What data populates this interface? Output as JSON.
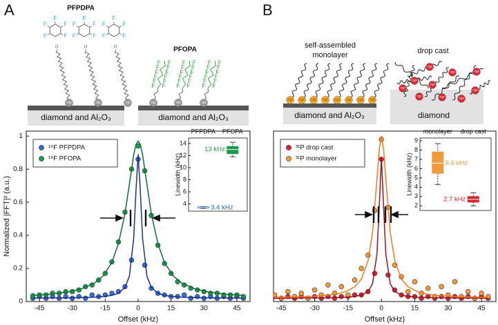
{
  "panels": {
    "a": "A",
    "b": "B"
  },
  "diagram": {
    "a": {
      "molecule_1": "PFPDPA",
      "molecule_2": "PFOPA",
      "substrate": "diamond and Al₂O₃",
      "atom_f": "F",
      "atom_o": "O",
      "atom_p": "³¹P"
    },
    "b": {
      "left_1": "self-assembled",
      "left_2": "monolayer",
      "right": "drop cast",
      "substrate_left": "diamond and Al₂O₃",
      "substrate_right": "diamond",
      "atom_p": "³¹P"
    }
  },
  "chart_data": [
    {
      "type": "scatter",
      "xlabel": "Offset (kHz)",
      "ylabel": "Normalized |FFT|² (a.u.)",
      "xlim": [
        -51,
        51
      ],
      "ylim": [
        0,
        1.03
      ],
      "xticks": [
        -45,
        -30,
        -15,
        0,
        15,
        30,
        45
      ],
      "yticks": [
        0,
        0.2,
        0.4,
        0.6,
        0.8,
        1
      ],
      "legend": "upper left",
      "x": [
        -48,
        -45,
        -42,
        -39,
        -36,
        -33,
        -30,
        -27,
        -24,
        -21,
        -18,
        -15,
        -12,
        -9,
        -6,
        -3,
        0,
        3,
        6,
        9,
        12,
        15,
        18,
        21,
        24,
        27,
        30,
        33,
        36,
        39,
        42,
        45,
        48
      ],
      "series": [
        {
          "name": "¹⁹F PFPDPA",
          "color": "#2f6fd6",
          "values": [
            0.02,
            0.03,
            0.02,
            0.03,
            0.02,
            0.03,
            0.02,
            0.03,
            0.02,
            0.04,
            0.03,
            0.04,
            0.05,
            0.06,
            0.09,
            0.25,
            0.86,
            0.22,
            0.08,
            0.05,
            0.04,
            0.03,
            0.03,
            0.04,
            0.02,
            0.03,
            0.02,
            0.03,
            0.02,
            0.03,
            0.02,
            0.03,
            0.02
          ]
        },
        {
          "name": "¹⁹F PFOPA",
          "color": "#1e9a4e",
          "values": [
            0.035,
            0.04,
            0.04,
            0.05,
            0.05,
            0.06,
            0.06,
            0.07,
            0.09,
            0.1,
            0.13,
            0.17,
            0.24,
            0.36,
            0.54,
            0.8,
            0.94,
            0.79,
            0.52,
            0.34,
            0.23,
            0.17,
            0.12,
            0.1,
            0.08,
            0.07,
            0.06,
            0.05,
            0.05,
            0.04,
            0.04,
            0.04,
            0.03
          ]
        },
        {
          "type": "line",
          "color": "#1c2d94",
          "x": [
            -48,
            -40,
            -32,
            -26,
            -20,
            -16,
            -12,
            -9,
            -6,
            -4,
            -2,
            -1,
            0,
            1,
            2,
            4,
            6,
            9,
            12,
            16,
            20,
            26,
            32,
            40,
            48
          ],
          "values": [
            0.021,
            0.022,
            0.022,
            0.024,
            0.026,
            0.03,
            0.037,
            0.05,
            0.085,
            0.153,
            0.385,
            0.666,
            0.89,
            0.666,
            0.385,
            0.153,
            0.085,
            0.05,
            0.037,
            0.03,
            0.026,
            0.024,
            0.022,
            0.022,
            0.021
          ]
        },
        {
          "type": "line",
          "color": "#0f6b35",
          "x": [
            -48,
            -40,
            -32,
            -26,
            -20,
            -16,
            -12,
            -9,
            -6,
            -4,
            -2,
            -1,
            0,
            1,
            2,
            4,
            6,
            9,
            12,
            16,
            20,
            26,
            32,
            40,
            48
          ],
          "values": [
            0.037,
            0.044,
            0.058,
            0.076,
            0.111,
            0.155,
            0.235,
            0.35,
            0.53,
            0.709,
            0.888,
            0.948,
            0.97,
            0.948,
            0.888,
            0.709,
            0.53,
            0.35,
            0.235,
            0.155,
            0.111,
            0.076,
            0.058,
            0.044,
            0.037
          ]
        }
      ]
    },
    {
      "type": "box",
      "ylabel": "Linewidth (kHz)",
      "categories": [
        "PFPDPA",
        "PFOPA"
      ],
      "ylim": [
        2.8,
        14.9
      ],
      "yticks": [
        4,
        6,
        8,
        10,
        12,
        14
      ],
      "boxes": [
        {
          "color": "#1f5fbf",
          "min": 3.25,
          "q1": 3.33,
          "median": 3.4,
          "q3": 3.5,
          "max": 3.55,
          "median_label": "3.4 kHz"
        },
        {
          "color": "#1e9a4e",
          "min": 11.8,
          "q1": 12.3,
          "median": 13,
          "q3": 13.5,
          "max": 14.2,
          "median_label": "13 kHz"
        }
      ]
    },
    {
      "type": "scatter",
      "xlabel": "Offset (kHz)",
      "xlim": [
        -48.5,
        51.5
      ],
      "ylim": [
        0,
        1.03
      ],
      "xticks": [
        -45,
        -30,
        -15,
        0,
        15,
        30,
        45
      ],
      "legend": "upper left",
      "x": [
        -48,
        -45,
        -42,
        -39,
        -36,
        -33,
        -30,
        -27,
        -24,
        -21,
        -18,
        -15,
        -12,
        -9,
        -6,
        -3,
        0,
        3,
        6,
        9,
        12,
        15,
        18,
        21,
        24,
        27,
        30,
        33,
        36,
        39,
        42,
        45,
        48
      ],
      "series": [
        {
          "name": "³¹P drop cast",
          "color": "#d9232e",
          "values": [
            0.03,
            0.02,
            0.03,
            0.02,
            0.03,
            0.02,
            0.03,
            0.02,
            0.03,
            0.02,
            0.03,
            0.03,
            0.04,
            0.04,
            0.06,
            0.17,
            0.86,
            0.16,
            0.07,
            0.04,
            0.03,
            0.03,
            0.02,
            0.03,
            0.02,
            0.03,
            0.02,
            0.03,
            0.02,
            0.03,
            0.02,
            0.03,
            0.02
          ]
        },
        {
          "name": "³¹P monolayer",
          "color": "#f39a3a",
          "values": [
            0.04,
            0.02,
            0.06,
            0.03,
            0.05,
            0.02,
            0.07,
            0.04,
            0.1,
            0.05,
            0.09,
            0.04,
            0.13,
            0.2,
            0.28,
            0.55,
            0.98,
            0.57,
            0.22,
            0.15,
            0.06,
            0.12,
            0.05,
            0.08,
            0.03,
            0.09,
            0.04,
            0.12,
            0.03,
            0.06,
            0.02,
            0.05,
            0.03
          ]
        },
        {
          "type": "line",
          "color": "#a3101f",
          "x": [
            -48,
            -40,
            -32,
            -26,
            -20,
            -16,
            -12,
            -9,
            -6,
            -4,
            -2,
            -1,
            0,
            1,
            2,
            4,
            6,
            9,
            12,
            16,
            20,
            26,
            32,
            40,
            48
          ],
          "values": [
            0.02,
            0.021,
            0.022,
            0.022,
            0.024,
            0.026,
            0.031,
            0.039,
            0.061,
            0.107,
            0.286,
            0.568,
            0.87,
            0.568,
            0.286,
            0.107,
            0.061,
            0.039,
            0.031,
            0.026,
            0.024,
            0.022,
            0.022,
            0.021,
            0.02
          ]
        },
        {
          "type": "line",
          "color": "#f07a20",
          "x": [
            -48,
            -40,
            -32,
            -26,
            -20,
            -16,
            -12,
            -9,
            -6,
            -4,
            -2,
            -1,
            0,
            1,
            2,
            4,
            6,
            9,
            12,
            16,
            20,
            26,
            32,
            40,
            48
          ],
          "values": [
            0.025,
            0.027,
            0.03,
            0.036,
            0.046,
            0.06,
            0.089,
            0.136,
            0.247,
            0.417,
            0.737,
            0.918,
            1.0,
            0.918,
            0.737,
            0.417,
            0.247,
            0.136,
            0.089,
            0.06,
            0.046,
            0.036,
            0.03,
            0.027,
            0.025
          ]
        }
      ]
    },
    {
      "type": "box",
      "ylabel": "Linewidth (kHz)",
      "categories": [
        "monolayer",
        "drop cast"
      ],
      "ylim": [
        1.5,
        9.3
      ],
      "yticks": [
        2,
        3,
        4,
        5,
        6,
        7,
        8,
        9
      ],
      "boxes": [
        {
          "color": "#f39a3a",
          "min": 4.3,
          "q1": 5.5,
          "median": 6.6,
          "q3": 7.8,
          "max": 8.7,
          "median_label": "6.6 kHz"
        },
        {
          "color": "#d9232e",
          "min": 2.0,
          "q1": 2.4,
          "median": 2.7,
          "q3": 3.0,
          "max": 3.4,
          "median_label": "2.7 kHz"
        }
      ]
    }
  ]
}
